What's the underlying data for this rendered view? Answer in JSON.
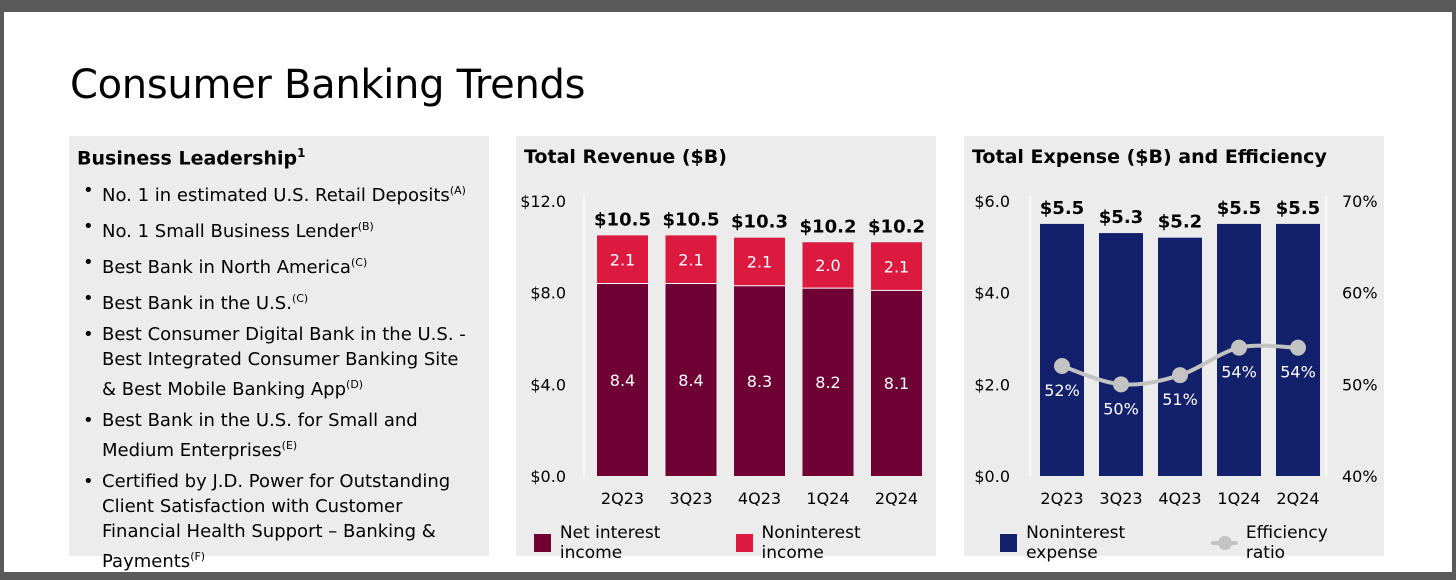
{
  "page": {
    "title": "Consumer Banking Trends"
  },
  "leadership": {
    "title": "Business Leadership",
    "title_sup": "1",
    "items": [
      {
        "text": "No. 1 in estimated U.S. Retail Deposits",
        "sup": "(A)"
      },
      {
        "text": "No. 1 Small Business Lender",
        "sup": "(B)"
      },
      {
        "text": "Best Bank in North America",
        "sup": "(C)"
      },
      {
        "text": "Best Bank in the U.S.",
        "sup": "(C)"
      },
      {
        "text": "Best Consumer Digital Bank in the U.S. - Best Integrated Consumer Banking Site & Best Mobile Banking App",
        "sup": "(D)"
      },
      {
        "text": "Best Bank in the U.S. for Small and Medium Enterprises",
        "sup": "(E)"
      },
      {
        "text": "Certified by J.D. Power for Outstanding Client Satisfaction with Customer Financial Health Support – Banking & Payments",
        "sup": "(F)"
      }
    ]
  },
  "colors": {
    "net_interest": "#6e0033",
    "noninterest_income": "#dc1a3f",
    "noninterest_expense": "#13206b",
    "efficiency": "#c3c3c3"
  },
  "chart_data": [
    {
      "type": "bar",
      "stacked": true,
      "title": "Total Revenue ($B)",
      "categories": [
        "2Q23",
        "3Q23",
        "4Q23",
        "1Q24",
        "2Q24"
      ],
      "series": [
        {
          "name": "Net interest income",
          "values": [
            8.4,
            8.4,
            8.3,
            8.2,
            8.1
          ],
          "labels": [
            "8.4",
            "8.4",
            "8.3",
            "8.2",
            "8.1"
          ]
        },
        {
          "name": "Noninterest income",
          "values": [
            2.1,
            2.1,
            2.1,
            2.0,
            2.1
          ],
          "labels": [
            "2.1",
            "2.1",
            "2.1",
            "2.0",
            "2.1"
          ]
        }
      ],
      "totals": [
        10.5,
        10.5,
        10.3,
        10.2,
        10.2
      ],
      "total_labels": [
        "$10.5",
        "$10.5",
        "$10.3",
        "$10.2",
        "$10.2"
      ],
      "ylim": [
        0,
        12
      ],
      "yticks": [
        "$0.0",
        "$4.0",
        "$8.0",
        "$12.0"
      ],
      "ytick_values": [
        0,
        4,
        8,
        12
      ]
    },
    {
      "type": "bar",
      "title": "Total Expense ($B) and Efficiency",
      "categories": [
        "2Q23",
        "3Q23",
        "4Q23",
        "1Q24",
        "2Q24"
      ],
      "series": [
        {
          "name": "Noninterest expense",
          "values": [
            5.5,
            5.3,
            5.2,
            5.5,
            5.5
          ],
          "labels": [
            "$5.5",
            "$5.3",
            "$5.2",
            "$5.5",
            "$5.5"
          ]
        },
        {
          "name": "Efficiency ratio",
          "type": "line",
          "axis": "right",
          "values": [
            52,
            50,
            51,
            54,
            54
          ],
          "labels": [
            "52%",
            "50%",
            "51%",
            "54%",
            "54%"
          ]
        }
      ],
      "ylim": [
        0,
        6
      ],
      "yticks": [
        "$0.0",
        "$2.0",
        "$4.0",
        "$6.0"
      ],
      "ytick_values": [
        0,
        2,
        4,
        6
      ],
      "y2lim": [
        40,
        70
      ],
      "y2ticks": [
        "40%",
        "50%",
        "60%",
        "70%"
      ],
      "y2tick_values": [
        40,
        50,
        60,
        70
      ]
    }
  ]
}
